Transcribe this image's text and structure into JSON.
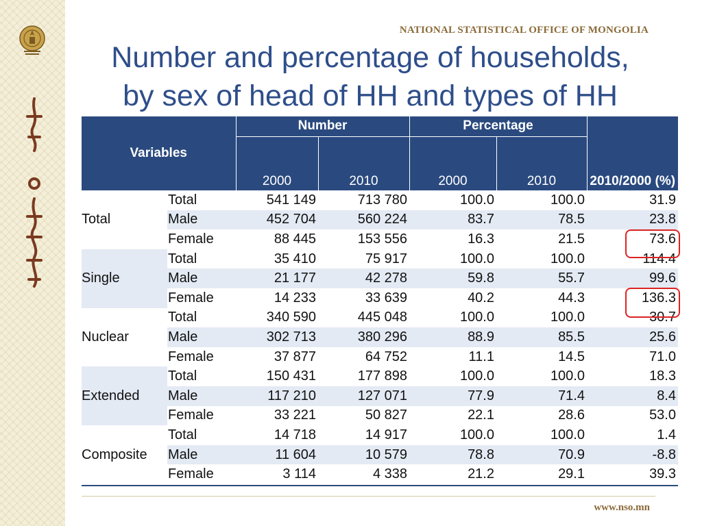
{
  "header": {
    "org": "NATIONAL STATISTICAL OFFICE OF MONGOLIA",
    "title_line1": "Number and percentage of households,",
    "title_line2": "by sex of head of HH and types of HH"
  },
  "table": {
    "col_variables": "Variables",
    "col_number": "Number",
    "col_percentage": "Percentage",
    "col_change": "2010/2000 (%)",
    "years": [
      "2000",
      "2010",
      "2000",
      "2010"
    ],
    "groups": [
      {
        "name": "Total",
        "rows": [
          {
            "sex": "Total",
            "values": [
              "541 149",
              "713 780",
              "100.0",
              "100.0",
              "31.9"
            ]
          },
          {
            "sex": "Male",
            "values": [
              "452 704",
              "560 224",
              "83.7",
              "78.5",
              "23.8"
            ]
          },
          {
            "sex": "Female",
            "values": [
              "88 445",
              "153 556",
              "16.3",
              "21.5",
              "73.6"
            ]
          }
        ]
      },
      {
        "name": "Single",
        "rows": [
          {
            "sex": "Total",
            "values": [
              "35 410",
              "75 917",
              "100.0",
              "100.0",
              "114.4"
            ]
          },
          {
            "sex": "Male",
            "values": [
              "21 177",
              "42 278",
              "59.8",
              "55.7",
              "99.6"
            ]
          },
          {
            "sex": "Female",
            "values": [
              "14 233",
              "33 639",
              "40.2",
              "44.3",
              "136.3"
            ]
          }
        ]
      },
      {
        "name": "Nuclear",
        "rows": [
          {
            "sex": "Total",
            "values": [
              "340 590",
              "445 048",
              "100.0",
              "100.0",
              "30.7"
            ]
          },
          {
            "sex": "Male",
            "values": [
              "302 713",
              "380 296",
              "88.9",
              "85.5",
              "25.6"
            ]
          },
          {
            "sex": "Female",
            "values": [
              "37 877",
              "64 752",
              "11.1",
              "14.5",
              "71.0"
            ]
          }
        ]
      },
      {
        "name": "Extended",
        "rows": [
          {
            "sex": "Total",
            "values": [
              "150 431",
              "177 898",
              "100.0",
              "100.0",
              "18.3"
            ]
          },
          {
            "sex": "Male",
            "values": [
              "117 210",
              "127 071",
              "77.9",
              "71.4",
              "8.4"
            ]
          },
          {
            "sex": "Female",
            "values": [
              "33 221",
              "50 827",
              "22.1",
              "28.6",
              "53.0"
            ]
          }
        ]
      },
      {
        "name": "Composite",
        "rows": [
          {
            "sex": "Total",
            "values": [
              "14 718",
              "14 917",
              "100.0",
              "100.0",
              "1.4"
            ]
          },
          {
            "sex": "Male",
            "values": [
              "11 604",
              "10 579",
              "78.8",
              "70.9",
              "-8.8"
            ]
          },
          {
            "sex": "Female",
            "values": [
              "3 114",
              "4 338",
              "21.2",
              "29.1",
              "39.3"
            ]
          }
        ]
      }
    ]
  },
  "footer": {
    "url": "www.nso.mn"
  },
  "colors": {
    "header_bg": "#2a4a7f",
    "title": "#2e4e8a",
    "row_shade": "#e3eaf4",
    "highlight": "#dd2222",
    "brand": "#8a6a38"
  }
}
